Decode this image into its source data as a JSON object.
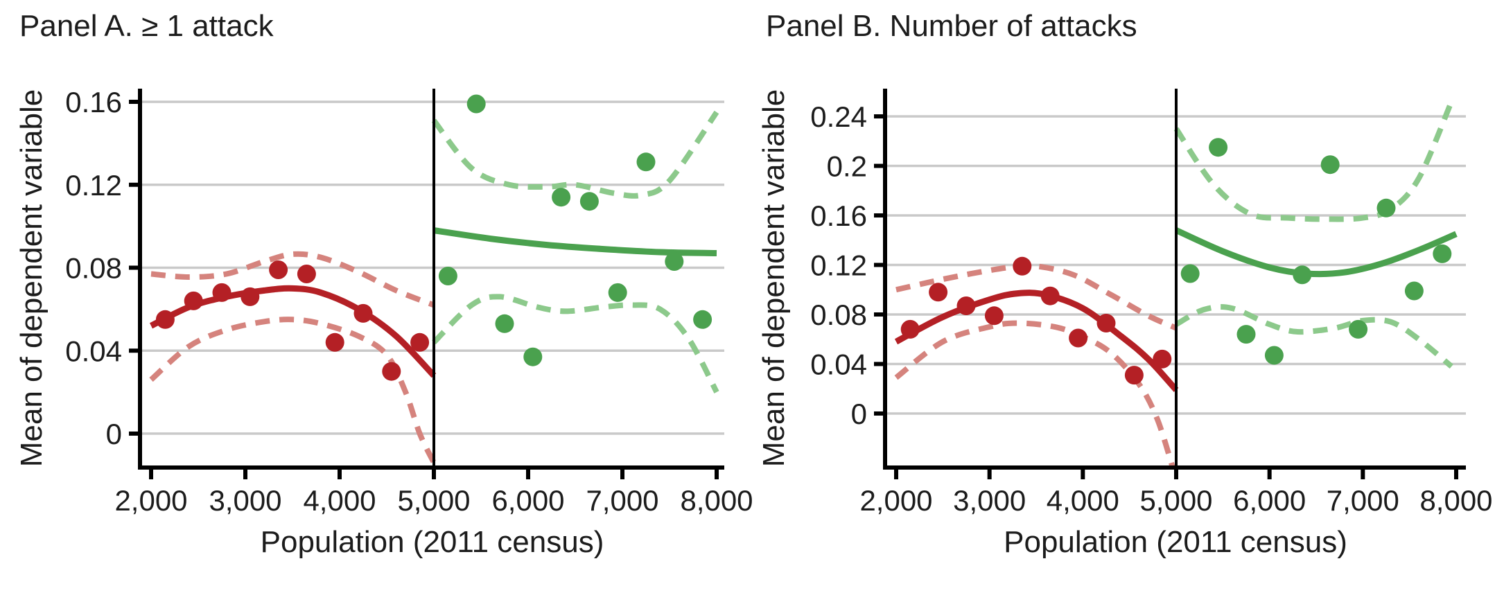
{
  "figure": {
    "background": "#ffffff",
    "description_colors": {
      "fit_red": "#b42025",
      "band_red": "#d5837d",
      "fit_green": "#4aa14e",
      "band_green": "#8cc98b",
      "grid": "#c9c9c9",
      "axis": "#000000",
      "cutoff": "#000000",
      "text": "#1c1c1c"
    }
  },
  "chart_data": [
    {
      "type": "scatter",
      "panel": "A",
      "title": "Panel A. ≥ 1 attack",
      "xlabel": "Population (2011 census)",
      "ylabel": "Mean of dependent variable",
      "xlim": [
        2000,
        8000
      ],
      "xticks": [
        2000,
        3000,
        4000,
        5000,
        6000,
        7000,
        8000
      ],
      "xtick_labels": [
        "2,000",
        "3,000",
        "4,000",
        "5,000",
        "6,000",
        "7,000",
        "8,000"
      ],
      "yticks": [
        0,
        0.04,
        0.08,
        0.12,
        0.16
      ],
      "ytick_labels": [
        "0",
        "0.04",
        "0.08",
        "0.12",
        "0.16"
      ],
      "ylim": [
        -0.018,
        0.166
      ],
      "grid": true,
      "legend": "none",
      "cutoff_x": 5000,
      "series": [
        {
          "name": "bin-means-below",
          "kind": "scatter",
          "color": "#b42025",
          "x": [
            2150,
            2450,
            2750,
            3050,
            3350,
            3650,
            3950,
            4250,
            4550,
            4850
          ],
          "y": [
            0.055,
            0.064,
            0.068,
            0.066,
            0.079,
            0.077,
            0.044,
            0.058,
            0.03,
            0.044
          ]
        },
        {
          "name": "bin-means-above",
          "kind": "scatter",
          "color": "#4aa14e",
          "x": [
            5150,
            5450,
            5750,
            6050,
            6350,
            6650,
            6950,
            7250,
            7550,
            7850
          ],
          "y": [
            0.076,
            0.159,
            0.053,
            0.037,
            0.114,
            0.112,
            0.068,
            0.131,
            0.083,
            0.055
          ]
        },
        {
          "name": "fit-below",
          "kind": "line",
          "style": "solid",
          "color": "#b42025",
          "x": [
            2000,
            2400,
            2800,
            3200,
            3500,
            3800,
            4200,
            4600,
            5000
          ],
          "y": [
            0.052,
            0.061,
            0.066,
            0.069,
            0.07,
            0.068,
            0.06,
            0.047,
            0.028
          ]
        },
        {
          "name": "ci-upper-below",
          "kind": "line",
          "style": "dashed",
          "color": "#d5837d",
          "x": [
            2000,
            2400,
            2800,
            3200,
            3500,
            3800,
            4200,
            4600,
            5000
          ],
          "y": [
            0.077,
            0.0755,
            0.077,
            0.083,
            0.0865,
            0.085,
            0.078,
            0.069,
            0.062
          ]
        },
        {
          "name": "ci-lower-below",
          "kind": "line",
          "style": "dashed",
          "color": "#d5837d",
          "x": [
            2000,
            2400,
            2800,
            3200,
            3500,
            3800,
            4200,
            4500,
            4700,
            4850,
            5000
          ],
          "y": [
            0.026,
            0.042,
            0.05,
            0.054,
            0.055,
            0.053,
            0.047,
            0.038,
            0.02,
            0.0,
            -0.014
          ]
        },
        {
          "name": "fit-above",
          "kind": "line",
          "style": "solid",
          "color": "#4aa14e",
          "x": [
            5000,
            5600,
            6200,
            6800,
            7400,
            8000
          ],
          "y": [
            0.098,
            0.094,
            0.091,
            0.089,
            0.0875,
            0.087
          ]
        },
        {
          "name": "ci-upper-above",
          "kind": "line",
          "style": "dashed",
          "color": "#8cc98b",
          "x": [
            5000,
            5400,
            5800,
            6200,
            6500,
            6900,
            7200,
            7500,
            8000
          ],
          "y": [
            0.151,
            0.128,
            0.12,
            0.119,
            0.12,
            0.116,
            0.115,
            0.122,
            0.155
          ]
        },
        {
          "name": "ci-lower-above",
          "kind": "line",
          "style": "dashed",
          "color": "#8cc98b",
          "x": [
            5000,
            5400,
            5700,
            6100,
            6400,
            6800,
            7100,
            7400,
            7700,
            8000
          ],
          "y": [
            0.044,
            0.062,
            0.066,
            0.061,
            0.059,
            0.061,
            0.062,
            0.06,
            0.046,
            0.02
          ]
        }
      ]
    },
    {
      "type": "scatter",
      "panel": "B",
      "title": "Panel B. Number of attacks",
      "xlabel": "Population (2011 census)",
      "ylabel": "Mean of dependent variable",
      "xlim": [
        2000,
        8000
      ],
      "xticks": [
        2000,
        3000,
        4000,
        5000,
        6000,
        7000,
        8000
      ],
      "xtick_labels": [
        "2,000",
        "3,000",
        "4,000",
        "5,000",
        "6,000",
        "7,000",
        "8,000"
      ],
      "yticks": [
        0,
        0.04,
        0.08,
        0.12,
        0.16,
        0.2,
        0.24
      ],
      "ytick_labels": [
        "0",
        "0.04",
        "0.08",
        "0.12",
        "0.16",
        "0.2",
        "0.24"
      ],
      "ylim": [
        -0.052,
        0.262
      ],
      "grid": true,
      "legend": "none",
      "cutoff_x": 5000,
      "series": [
        {
          "name": "bin-means-below",
          "kind": "scatter",
          "color": "#b42025",
          "x": [
            2150,
            2450,
            2750,
            3050,
            3350,
            3650,
            3950,
            4250,
            4550,
            4850
          ],
          "y": [
            0.068,
            0.098,
            0.087,
            0.079,
            0.119,
            0.095,
            0.061,
            0.073,
            0.031,
            0.044
          ]
        },
        {
          "name": "bin-means-above",
          "kind": "scatter",
          "color": "#4aa14e",
          "x": [
            5150,
            5450,
            5750,
            6050,
            6350,
            6650,
            6950,
            7250,
            7550,
            7850
          ],
          "y": [
            0.113,
            0.215,
            0.064,
            0.047,
            0.112,
            0.201,
            0.068,
            0.166,
            0.099,
            0.129
          ]
        },
        {
          "name": "fit-below",
          "kind": "line",
          "style": "solid",
          "color": "#b42025",
          "x": [
            2000,
            2500,
            3000,
            3300,
            3600,
            4000,
            4400,
            4700,
            5000
          ],
          "y": [
            0.058,
            0.078,
            0.092,
            0.097,
            0.096,
            0.085,
            0.063,
            0.044,
            0.019
          ]
        },
        {
          "name": "ci-upper-below",
          "kind": "line",
          "style": "dashed",
          "color": "#d5837d",
          "x": [
            2000,
            2600,
            3200,
            3500,
            3900,
            4300,
            4700,
            5000
          ],
          "y": [
            0.1,
            0.11,
            0.118,
            0.119,
            0.112,
            0.096,
            0.079,
            0.069
          ]
        },
        {
          "name": "ci-lower-below",
          "kind": "line",
          "style": "dashed",
          "color": "#d5837d",
          "x": [
            2000,
            2500,
            3000,
            3300,
            3700,
            4000,
            4300,
            4600,
            4800,
            4980
          ],
          "y": [
            0.029,
            0.058,
            0.07,
            0.073,
            0.07,
            0.062,
            0.049,
            0.024,
            -0.005,
            -0.048
          ]
        },
        {
          "name": "fit-above",
          "kind": "line",
          "style": "solid",
          "color": "#4aa14e",
          "x": [
            5000,
            5500,
            6000,
            6400,
            6800,
            7200,
            7600,
            8000
          ],
          "y": [
            0.148,
            0.131,
            0.118,
            0.113,
            0.114,
            0.121,
            0.132,
            0.145
          ]
        },
        {
          "name": "ci-upper-above",
          "kind": "line",
          "style": "dashed",
          "color": "#8cc98b",
          "x": [
            5000,
            5400,
            5800,
            6200,
            6600,
            7000,
            7300,
            7600,
            7950
          ],
          "y": [
            0.23,
            0.185,
            0.161,
            0.158,
            0.157,
            0.158,
            0.165,
            0.19,
            0.252
          ]
        },
        {
          "name": "ci-lower-above",
          "kind": "line",
          "style": "dashed",
          "color": "#8cc98b",
          "x": [
            5000,
            5300,
            5600,
            6000,
            6300,
            6700,
            7000,
            7300,
            7600,
            7950
          ],
          "y": [
            0.072,
            0.084,
            0.085,
            0.072,
            0.066,
            0.069,
            0.075,
            0.074,
            0.06,
            0.038
          ]
        }
      ]
    }
  ]
}
